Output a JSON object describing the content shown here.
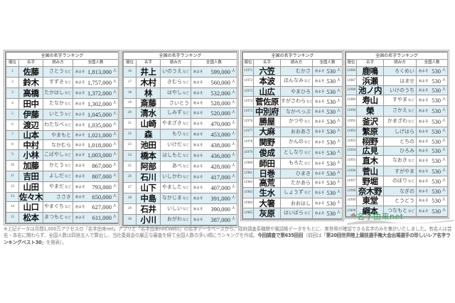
{
  "table_title": "全国の名字ランキング",
  "headers": [
    "順位",
    "名字",
    "読み方",
    "全国人数"
  ],
  "approx_label": "およそ",
  "unit_label": "人",
  "etc_label": "など",
  "tables": [
    {
      "rows": [
        {
          "rank": "1",
          "name": "佐藤",
          "reading": "さとう",
          "etc": true,
          "count": "1,813,000"
        },
        {
          "rank": "2",
          "name": "鈴木",
          "reading": "すずき",
          "etc": true,
          "count": "1,757,000"
        },
        {
          "rank": "3",
          "name": "高橋",
          "reading": "たかはし",
          "etc": true,
          "count": "1,372,000"
        },
        {
          "rank": "4",
          "name": "田中",
          "reading": "たなか",
          "etc": true,
          "count": "1,302,000"
        },
        {
          "rank": "5",
          "name": "伊藤",
          "reading": "いとう",
          "etc": true,
          "count": "1,045,000"
        },
        {
          "rank": "6",
          "name": "渡辺",
          "reading": "わたなべ",
          "etc": true,
          "count": "1,035,000"
        },
        {
          "rank": "7",
          "name": "山本",
          "reading": "やまもと",
          "etc": false,
          "count": "1,021,000"
        },
        {
          "rank": "8",
          "name": "中村",
          "reading": "なかむら",
          "etc": false,
          "count": "1,018,000"
        },
        {
          "rank": "9",
          "name": "小林",
          "reading": "こばやし",
          "etc": true,
          "count": "1,003,000"
        },
        {
          "rank": "10",
          "name": "加藤",
          "reading": "かとう",
          "etc": true,
          "count": "867,000"
        },
        {
          "rank": "11",
          "name": "吉田",
          "reading": "よしだ",
          "etc": true,
          "count": "807,000"
        },
        {
          "rank": "12",
          "name": "山田",
          "reading": "やまだ",
          "etc": true,
          "count": "793,000"
        },
        {
          "rank": "13",
          "name": "佐々木",
          "reading": "ささき",
          "etc": false,
          "count": "650,000"
        },
        {
          "rank": "14",
          "name": "山口",
          "reading": "やまぐち",
          "etc": true,
          "count": "627,000"
        },
        {
          "rank": "15",
          "name": "松本",
          "reading": "まつもと",
          "etc": true,
          "count": "611,000"
        }
      ]
    },
    {
      "rows": [
        {
          "rank": "16",
          "name": "井上",
          "reading": "いのうえ",
          "etc": true,
          "count": "599,000"
        },
        {
          "rank": "17",
          "name": "木村",
          "reading": "きむら",
          "etc": true,
          "count": "560,000"
        },
        {
          "rank": "18",
          "name": "林",
          "reading": "はやし",
          "etc": true,
          "count": "532,000"
        },
        {
          "rank": "19",
          "name": "斎藤",
          "reading": "さいとう",
          "etc": false,
          "count": "528,000"
        },
        {
          "rank": "20",
          "name": "清水",
          "reading": "しみず",
          "etc": true,
          "count": "520,000"
        },
        {
          "rank": "21",
          "name": "山崎",
          "reading": "やまざき",
          "etc": true,
          "count": "470,000"
        },
        {
          "rank": "22",
          "name": "森",
          "reading": "もり",
          "etc": true,
          "count": "453,000"
        },
        {
          "rank": "23",
          "name": "池田",
          "reading": "いけだ",
          "etc": true,
          "count": "438,000"
        },
        {
          "rank": "24",
          "name": "橋本",
          "reading": "はしもと",
          "etc": true,
          "count": "436,000"
        },
        {
          "rank": "25",
          "name": "阿部",
          "reading": "あべ",
          "etc": true,
          "count": "428,000"
        },
        {
          "rank": "26",
          "name": "石川",
          "reading": "いしかわ",
          "etc": true,
          "count": "417,000"
        },
        {
          "rank": "27",
          "name": "山下",
          "reading": "やました",
          "etc": true,
          "count": "407,000"
        },
        {
          "rank": "28",
          "name": "中島",
          "reading": "なかじま",
          "etc": true,
          "count": "391,000"
        },
        {
          "rank": "29",
          "name": "石井",
          "reading": "いしい",
          "etc": true,
          "count": "390,000"
        },
        {
          "rank": "30",
          "name": "小川",
          "reading": "おがわ",
          "etc": true,
          "count": "387,000"
        }
      ]
    },
    {
      "rows": [
        {
          "rank": "11971",
          "name": "六笠",
          "reading": "むかさ",
          "etc": false,
          "count": "530"
        },
        {
          "rank": "11972",
          "name": "本波",
          "reading": "ほんなみ",
          "etc": true,
          "count": "530"
        },
        {
          "rank": "11973",
          "name": "山広",
          "reading": "やまひろ",
          "etc": false,
          "count": "530"
        },
        {
          "rank": "11974",
          "name": "菅佐原",
          "reading": "すがさわら",
          "etc": true,
          "count": "530"
        },
        {
          "rank": "11975",
          "name": "中別府",
          "reading": "なかべっぷ",
          "etc": false,
          "count": "530"
        },
        {
          "rank": "11976",
          "name": "勝屋",
          "reading": "かつや",
          "etc": true,
          "count": "530"
        },
        {
          "rank": "11977",
          "name": "大麻",
          "reading": "おおあさ",
          "etc": false,
          "count": "530"
        },
        {
          "rank": "11978",
          "name": "関野",
          "reading": "かんの",
          "etc": true,
          "count": "530"
        },
        {
          "rank": "11979",
          "name": "俊成",
          "reading": "としなり",
          "etc": true,
          "count": "530"
        },
        {
          "rank": "11980",
          "name": "師田",
          "reading": "もろた",
          "etc": true,
          "count": "530"
        },
        {
          "rank": "11981",
          "name": "日巻",
          "reading": "ひまき",
          "etc": false,
          "count": "530"
        },
        {
          "rank": "11982",
          "name": "高荒",
          "reading": "たかあら",
          "etc": false,
          "count": "530"
        },
        {
          "rank": "11983",
          "name": "生水",
          "reading": "しょうず",
          "etc": true,
          "count": "530"
        },
        {
          "rank": "11984",
          "name": "大箸",
          "reading": "おおはし",
          "etc": false,
          "count": "530"
        },
        {
          "rank": "11985",
          "name": "灰原",
          "reading": "はいばら",
          "etc": true,
          "count": "530"
        }
      ]
    },
    {
      "rows": [
        {
          "rank": "11986",
          "name": "鹿鳴",
          "reading": "ろくめい",
          "etc": false,
          "count": "530"
        },
        {
          "rank": "11987",
          "name": "浜瀬",
          "reading": "はませ",
          "etc": false,
          "count": "530"
        },
        {
          "rank": "11988",
          "name": "池ノ内",
          "reading": "いけのうち",
          "etc": false,
          "count": "530"
        },
        {
          "rank": "11989",
          "name": "寿山",
          "reading": "すやま",
          "etc": true,
          "count": "530"
        },
        {
          "rank": "11990",
          "name": "榮",
          "reading": "さかえ",
          "etc": true,
          "count": "530"
        },
        {
          "rank": "11991",
          "name": "釜沢",
          "reading": "かまざわ",
          "etc": true,
          "count": "530"
        },
        {
          "rank": "11992",
          "name": "繁原",
          "reading": "しげはら",
          "etc": false,
          "count": "530"
        },
        {
          "rank": "11993",
          "name": "栩野",
          "reading": "とちの",
          "etc": false,
          "count": "530"
        },
        {
          "rank": "11994",
          "name": "広見",
          "reading": "ひろみ",
          "etc": false,
          "count": "530"
        },
        {
          "rank": "11995",
          "name": "直木",
          "reading": "なおき",
          "etc": true,
          "count": "530"
        },
        {
          "rank": "11996",
          "name": "菅山",
          "reading": "すがやま",
          "etc": false,
          "count": "530"
        },
        {
          "rank": "11997",
          "name": "野堀",
          "reading": "のぼり",
          "etc": true,
          "count": "530"
        },
        {
          "rank": "11998",
          "name": "奈木野",
          "reading": "なぎの",
          "etc": false,
          "count": "530"
        },
        {
          "rank": "11999",
          "name": "東堂",
          "reading": "とうどう",
          "etc": false,
          "count": "530"
        },
        {
          "rank": "12000",
          "name": "綱本",
          "reading": "つなもと",
          "etc": true,
          "count": "530"
        }
      ]
    }
  ],
  "logo_text": "名字由来net",
  "note": {
    "part1": "※上記データは月間1,000万アクセスの「名字由来net」アプリと「名字由来net(Web)」の名字データベースから、政府調査系機関や電話帳データをもとに、実世帯が確認できる名字のみを集計いたしました。有名人は芸名・本名に関わらず、全国人数は四捨五入で算出し、当社委員会の厳正な審査を経て全国人数の多い順にランキングを作成。",
    "bold1": "今回調査で第635回目",
    "part2": "（前回は「",
    "bold2": "第20回世界陸上競技選手権大会出場選手の珍しいレア名字ランキングベスト30",
    "part3": "」を発表）。"
  }
}
